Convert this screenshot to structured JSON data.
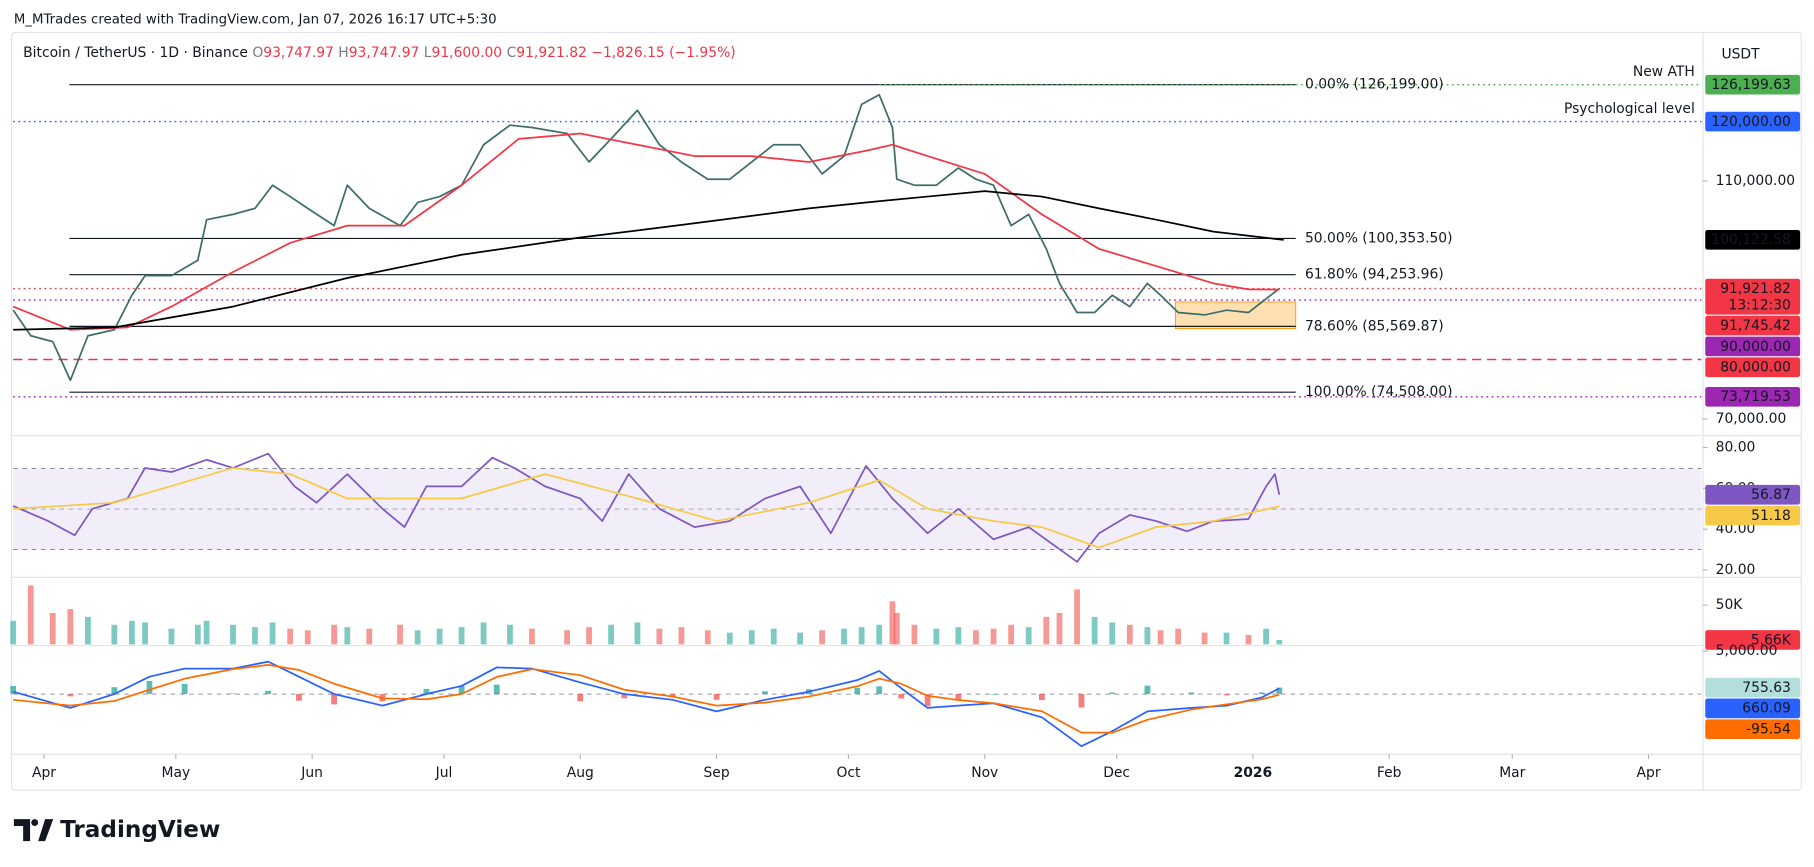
{
  "header": {
    "attribution": "M_MTrades created with TradingView.com, Jan 07, 2026 16:17 UTC+5:30"
  },
  "chart_data": [
    {
      "type": "line",
      "title": "Bitcoin / TetherUS · 1D · Binance",
      "ohlc": [
        {
          "key": "O",
          "text": "93,747.97"
        },
        {
          "key": "H",
          "text": "93,747.97"
        },
        {
          "key": "L",
          "text": "91,600.00"
        },
        {
          "key": "C",
          "text": "91,921.82"
        }
      ],
      "change": "−1,826.15 (−1.95%)",
      "currency": "USDT",
      "ylim": [
        67500,
        134600
      ],
      "yticks": [
        {
          "value": 110000,
          "label": "110,000.00"
        },
        {
          "value": 70000,
          "label": "70,000.00"
        }
      ],
      "series": [
        {
          "color": "#3d6e6a",
          "x": [
            -7,
            -3,
            2,
            6,
            10,
            16,
            20,
            23,
            29,
            35,
            37,
            43,
            48,
            52,
            56,
            60,
            66,
            69,
            74,
            81,
            85,
            90,
            95,
            100,
            106,
            111,
            119,
            124,
            129,
            135,
            140,
            145,
            151,
            156,
            161,
            166,
            172,
            177,
            182,
            186,
            190,
            193,
            194,
            198,
            203,
            208,
            212,
            216,
            220,
            224,
            228,
            231,
            235,
            239,
            243,
            247,
            251,
            254,
            258,
            264,
            269,
            274,
            278,
            281
          ],
          "values": [
            88300,
            84000,
            83000,
            76500,
            84000,
            85000,
            90800,
            94100,
            94100,
            96700,
            103500,
            104400,
            105400,
            109300,
            107400,
            105400,
            102500,
            109300,
            105400,
            102500,
            106400,
            107400,
            109300,
            116100,
            119400,
            119000,
            118000,
            113200,
            117100,
            121900,
            116100,
            113200,
            110300,
            110300,
            113200,
            116100,
            116100,
            111200,
            114200,
            122900,
            124500,
            119000,
            110300,
            109300,
            109300,
            112200,
            110300,
            109300,
            102500,
            104400,
            98600,
            92800,
            87900,
            87900,
            90800,
            88900,
            92800,
            90800,
            87900,
            87500,
            88300,
            87900,
            90200,
            91921.82
          ]
        },
        {
          "color": "#f23645",
          "x": [
            -7,
            6,
            19,
            29,
            43,
            56,
            69,
            82,
            95,
            108,
            122,
            135,
            148,
            161,
            174,
            187,
            193,
            201,
            214,
            227,
            240,
            253,
            266,
            274,
            281
          ],
          "values": [
            88900,
            85000,
            85400,
            88900,
            94700,
            99600,
            102500,
            102500,
            109300,
            117100,
            118000,
            116100,
            114200,
            114200,
            113200,
            115100,
            116100,
            114200,
            111200,
            104400,
            98600,
            95700,
            92800,
            91800,
            91745.42
          ]
        },
        {
          "color": "#000000",
          "x": [
            -7,
            16,
            43,
            69,
            95,
            122,
            148,
            174,
            187,
            201,
            214,
            227,
            240,
            253,
            266,
            282
          ],
          "values": [
            85000,
            85400,
            88900,
            93700,
            97600,
            100500,
            102900,
            105400,
            106400,
            107400,
            108300,
            107400,
            105400,
            103500,
            101500,
            100122.58
          ]
        }
      ],
      "levels": [
        {
          "value": 126199,
          "label": "0.00% (126,199.00)"
        },
        {
          "value": 100353.5,
          "label": "50.00% (100,353.50)"
        },
        {
          "value": 94253.96,
          "label": "61.80% (94,253.96)"
        },
        {
          "value": 85569.87,
          "label": "78.60% (85,569.87)"
        },
        {
          "value": 74508,
          "label": "100.00% (74,508.00)"
        }
      ],
      "price_labels": [
        {
          "value": 126199.63,
          "label": "126,199.63",
          "color": "#4caf50",
          "line": "dotted",
          "note": "New ATH"
        },
        {
          "value": 120000,
          "label": "120,000.00",
          "color": "#2962ff",
          "line": "dotted",
          "note": "Psychological level"
        },
        {
          "value": 100122.58,
          "label": "100,122.58",
          "color": "#000000"
        },
        {
          "value": 91921.82,
          "label": "91,921.82",
          "color": "#f23645",
          "line": "dotted",
          "countdown": "13:12:30"
        },
        {
          "value": 91745.42,
          "label": "91,745.42",
          "color": "#f23645"
        },
        {
          "value": 90000,
          "label": "90,000.00",
          "color": "#9c27b0",
          "line": "dotted"
        },
        {
          "value": 80000,
          "label": "80,000.00",
          "color": "#f23645",
          "line": "dashed"
        },
        {
          "value": 73719.53,
          "label": "73,719.53",
          "color": "#9c27b0",
          "line": "dotted"
        }
      ]
    },
    {
      "type": "line",
      "ylim": [
        17,
        85
      ],
      "yticks": [
        {
          "value": 80,
          "label": "80.00"
        },
        {
          "value": 60,
          "label": "60.00"
        },
        {
          "value": 40,
          "label": "40.00"
        },
        {
          "value": 20,
          "label": "20.00"
        }
      ],
      "series": [
        {
          "color": "#7e57c2",
          "x": [
            -7,
            1,
            7,
            11,
            19,
            23,
            29,
            37,
            43,
            51,
            57,
            62,
            69,
            77,
            82,
            87,
            95,
            102,
            107,
            114,
            122,
            127,
            133,
            140,
            148,
            156,
            164,
            172,
            179,
            187,
            193,
            201,
            208,
            216,
            224,
            235,
            240,
            247,
            253,
            260,
            266,
            274,
            278,
            280,
            281
          ],
          "values": [
            51.4,
            44,
            37,
            50,
            55,
            70,
            68,
            74,
            70,
            77,
            61,
            53,
            67,
            50,
            41,
            61,
            61,
            75,
            70,
            61,
            55,
            44,
            67,
            50,
            41,
            44,
            55,
            61,
            38,
            71,
            55,
            38,
            50,
            35,
            41,
            24,
            38,
            47,
            44,
            39,
            44,
            45,
            61,
            67,
            56.87
          ]
        },
        {
          "color": "#f7c948",
          "x": [
            -7,
            16,
            43,
            56,
            69,
            95,
            114,
            135,
            153,
            174,
            190,
            201,
            216,
            227,
            240,
            253,
            266,
            281
          ],
          "values": [
            50,
            53,
            70,
            67,
            55,
            55,
            67,
            55,
            44,
            53,
            64,
            50,
            44,
            41,
            31,
            41,
            44,
            51.18
          ]
        }
      ],
      "price_labels": [
        {
          "value": 56.87,
          "label": "56.87",
          "color": "#7e57c2"
        },
        {
          "value": 51.18,
          "label": "51.18",
          "color": "#f7c948",
          "text_color": "#131722"
        }
      ]
    },
    {
      "type": "bar",
      "ylim": [
        0,
        84000
      ],
      "yticks": [
        {
          "value": 50000,
          "label": "50K"
        }
      ],
      "up_color": "#26a69a",
      "down_color": "#ef5350",
      "x": [
        -7,
        -3,
        2,
        6,
        10,
        16,
        20,
        23,
        29,
        35,
        37,
        43,
        48,
        52,
        56,
        60,
        66,
        69,
        74,
        81,
        85,
        90,
        95,
        100,
        106,
        111,
        119,
        124,
        129,
        135,
        140,
        145,
        151,
        156,
        161,
        166,
        172,
        177,
        182,
        186,
        190,
        193,
        194,
        198,
        203,
        208,
        212,
        216,
        220,
        224,
        228,
        231,
        235,
        239,
        243,
        247,
        251,
        254,
        258,
        264,
        269,
        274,
        278,
        281
      ],
      "values": [
        30000,
        75000,
        40000,
        45000,
        35000,
        25000,
        30000,
        28000,
        20000,
        25000,
        30000,
        25000,
        22000,
        28000,
        20000,
        18000,
        25000,
        22000,
        20000,
        25000,
        18000,
        20000,
        22000,
        28000,
        25000,
        20000,
        18000,
        22000,
        25000,
        28000,
        20000,
        22000,
        18000,
        15000,
        18000,
        20000,
        15000,
        18000,
        20000,
        22000,
        25000,
        55000,
        40000,
        25000,
        20000,
        22000,
        18000,
        20000,
        25000,
        22000,
        35000,
        40000,
        70000,
        35000,
        28000,
        25000,
        22000,
        18000,
        20000,
        15000,
        15000,
        12000,
        20000,
        5660
      ],
      "price_labels": [
        {
          "value": 5660,
          "label": "5.66K",
          "color": "#f23645"
        }
      ]
    },
    {
      "type": "line",
      "ylim": [
        -6750,
        5650
      ],
      "yticks": [
        {
          "value": 5000,
          "label": "5,000.00"
        }
      ],
      "xlim": [
        -7,
        377
      ],
      "xticks": [
        {
          "value": 0,
          "label": "Apr"
        },
        {
          "value": 30,
          "label": "May"
        },
        {
          "value": 61,
          "label": "Jun"
        },
        {
          "value": 91,
          "label": "Jul"
        },
        {
          "value": 122,
          "label": "Aug"
        },
        {
          "value": 153,
          "label": "Sep"
        },
        {
          "value": 183,
          "label": "Oct"
        },
        {
          "value": 214,
          "label": "Nov"
        },
        {
          "value": 244,
          "label": "Dec"
        },
        {
          "value": 275,
          "label": "2026"
        },
        {
          "value": 306,
          "label": "Feb"
        },
        {
          "value": 334,
          "label": "Mar"
        },
        {
          "value": 365,
          "label": "Apr"
        }
      ],
      "series": [
        {
          "type": "bar",
          "color": "#26a69a",
          "negative_color": "#ef5350",
          "x": [
            -7,
            6,
            16,
            24,
            32,
            43,
            51,
            58,
            66,
            77,
            87,
            95,
            103,
            111,
            122,
            132,
            143,
            153,
            164,
            174,
            185,
            190,
            195,
            201,
            208,
            216,
            227,
            236,
            243,
            251,
            261,
            269,
            277,
            281
          ],
          "values": [
            945,
            -270,
            800,
            1525,
            1170,
            70,
            380,
            -775,
            -1200,
            -850,
            600,
            945,
            1100,
            70,
            -850,
            -500,
            -375,
            -675,
            325,
            570,
            720,
            900,
            -525,
            -1420,
            -650,
            0,
            -700,
            -1575,
            180,
            975,
            180,
            -150,
            195,
            755.63
          ]
        },
        {
          "color": "#2962ff",
          "x": [
            -7,
            6,
            16,
            24,
            32,
            43,
            51,
            58,
            66,
            77,
            87,
            95,
            103,
            111,
            122,
            132,
            143,
            153,
            164,
            174,
            185,
            190,
            195,
            201,
            208,
            216,
            227,
            236,
            243,
            251,
            261,
            269,
            277,
            281
          ],
          "values": [
            270,
            -1620,
            0,
            2025,
            2970,
            2970,
            3780,
            2025,
            0,
            -1350,
            0,
            945,
            3100,
            2970,
            1350,
            0,
            -675,
            -2025,
            -675,
            270,
            1620,
            2700,
            675,
            -1620,
            -1350,
            -1080,
            -2700,
            -6075,
            -4320,
            -2025,
            -1620,
            -1350,
            -405,
            660.09
          ]
        },
        {
          "color": "#ff6d00",
          "x": [
            -7,
            6,
            16,
            24,
            32,
            43,
            51,
            58,
            66,
            77,
            87,
            95,
            103,
            111,
            122,
            132,
            143,
            153,
            164,
            174,
            185,
            190,
            195,
            201,
            208,
            216,
            227,
            236,
            243,
            251,
            261,
            269,
            277,
            281
          ],
          "values": [
            -675,
            -1350,
            -800,
            500,
            1800,
            2900,
            3400,
            2800,
            1200,
            -500,
            -600,
            0,
            2000,
            2900,
            2200,
            500,
            -300,
            -1350,
            -1000,
            -300,
            900,
            1800,
            1200,
            -200,
            -700,
            -1080,
            -2000,
            -4500,
            -4500,
            -3000,
            -1800,
            -1200,
            -600,
            -95.54
          ]
        }
      ],
      "price_labels": [
        {
          "value": 755.63,
          "label": "755.63",
          "color": "#b2dfdb",
          "text_color": "#131722"
        },
        {
          "value": 660.09,
          "label": "660.09",
          "color": "#2962ff"
        },
        {
          "value": -95.54,
          "label": "-95.54",
          "color": "#ff6d00"
        }
      ]
    }
  ],
  "footer": {
    "brand": "TradingView"
  }
}
